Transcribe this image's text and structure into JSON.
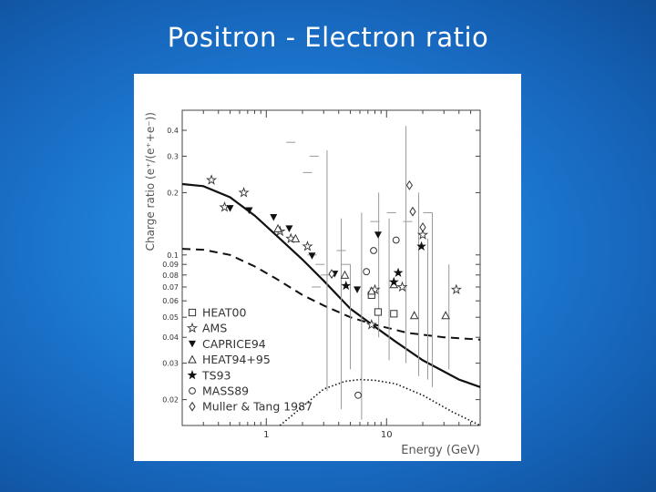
{
  "slide": {
    "title": "Positron - Electron ratio"
  },
  "chart_data": {
    "type": "scatter",
    "title": "",
    "xlabel": "Energy (GeV)",
    "ylabel": "Charge ratio (e⁺/(e⁺+e⁻))",
    "xscale": "log",
    "yscale": "log",
    "xlim": [
      0.2,
      60
    ],
    "ylim": [
      0.015,
      0.5
    ],
    "x_ticks": [
      "1",
      "10"
    ],
    "y_ticks": [
      "0.4",
      "0.3",
      "0.2",
      "0.1",
      "0.09",
      "0.08",
      "0.07",
      "0.06",
      "0.05",
      "0.04",
      "0.03",
      "0.02"
    ],
    "legend_position": "bottom-left",
    "grid": false,
    "series": [
      {
        "name": "HEAT00",
        "marker": "square",
        "points": [
          [
            7.5,
            0.064
          ],
          [
            8.5,
            0.053
          ],
          [
            11.5,
            0.052
          ]
        ]
      },
      {
        "name": "AMS",
        "marker": "star",
        "points": [
          [
            0.35,
            0.23
          ],
          [
            0.45,
            0.17
          ],
          [
            0.65,
            0.2
          ],
          [
            1.3,
            0.13
          ],
          [
            1.6,
            0.12
          ],
          [
            2.2,
            0.11
          ],
          [
            7.5,
            0.046
          ],
          [
            8.0,
            0.068
          ],
          [
            13.5,
            0.07
          ],
          [
            20.0,
            0.125
          ],
          [
            38.0,
            0.068
          ]
        ]
      },
      {
        "name": "CAPRICE94",
        "marker": "filled-triangle-down",
        "points": [
          [
            0.5,
            0.168
          ],
          [
            0.72,
            0.164
          ],
          [
            1.15,
            0.152
          ],
          [
            1.55,
            0.134
          ],
          [
            2.4,
            0.099
          ],
          [
            3.7,
            0.081
          ],
          [
            5.7,
            0.068
          ],
          [
            8.5,
            0.125
          ]
        ]
      },
      {
        "name": "HEAT94+95",
        "marker": "triangle-up",
        "points": [
          [
            1.25,
            0.134
          ],
          [
            1.75,
            0.12
          ],
          [
            4.5,
            0.08
          ],
          [
            7.5,
            0.067
          ],
          [
            11.5,
            0.072
          ],
          [
            17.0,
            0.051
          ],
          [
            31.0,
            0.051
          ]
        ]
      },
      {
        "name": "TS93",
        "marker": "filled-star",
        "points": [
          [
            4.6,
            0.071
          ],
          [
            11.5,
            0.074
          ],
          [
            12.5,
            0.082
          ],
          [
            19.5,
            0.11
          ]
        ]
      },
      {
        "name": "MASS89",
        "marker": "circle",
        "points": [
          [
            5.8,
            0.021
          ],
          [
            6.8,
            0.083
          ],
          [
            7.8,
            0.105
          ],
          [
            12.0,
            0.118
          ]
        ]
      },
      {
        "name": "Muller & Tang 1987",
        "marker": "diamond",
        "points": [
          [
            3.5,
            0.081
          ],
          [
            15.5,
            0.217
          ],
          [
            16.5,
            0.162
          ],
          [
            20.0,
            0.136
          ]
        ]
      }
    ],
    "curves": [
      {
        "style": "solid",
        "points": [
          [
            0.2,
            0.22
          ],
          [
            0.3,
            0.215
          ],
          [
            0.5,
            0.19
          ],
          [
            0.8,
            0.155
          ],
          [
            1.2,
            0.125
          ],
          [
            2.0,
            0.095
          ],
          [
            3.0,
            0.075
          ],
          [
            5.0,
            0.055
          ],
          [
            8.0,
            0.045
          ],
          [
            12.0,
            0.038
          ],
          [
            20.0,
            0.031
          ],
          [
            40.0,
            0.025
          ],
          [
            60.0,
            0.023
          ]
        ]
      },
      {
        "style": "dashed",
        "points": [
          [
            0.2,
            0.107
          ],
          [
            0.3,
            0.106
          ],
          [
            0.5,
            0.1
          ],
          [
            0.8,
            0.088
          ],
          [
            1.2,
            0.077
          ],
          [
            2.0,
            0.064
          ],
          [
            3.0,
            0.057
          ],
          [
            5.0,
            0.05
          ],
          [
            8.0,
            0.046
          ],
          [
            15.0,
            0.042
          ],
          [
            30.0,
            0.04
          ],
          [
            60.0,
            0.039
          ]
        ]
      },
      {
        "style": "dotted",
        "points": [
          [
            1.3,
            0.015
          ],
          [
            2.0,
            0.0185
          ],
          [
            3.0,
            0.0225
          ],
          [
            4.5,
            0.0245
          ],
          [
            6.0,
            0.025
          ],
          [
            8.0,
            0.0248
          ],
          [
            12.0,
            0.0238
          ],
          [
            20.0,
            0.021
          ],
          [
            35.0,
            0.0175
          ],
          [
            60.0,
            0.015
          ]
        ]
      }
    ],
    "extra_error_bars": [
      [
        3.2,
        0.022,
        0.32
      ],
      [
        4.2,
        0.018,
        0.15
      ],
      [
        5.0,
        0.028,
        0.09
      ],
      [
        6.2,
        0.016,
        0.16
      ],
      [
        8.6,
        0.04,
        0.2
      ],
      [
        10.5,
        0.031,
        0.15
      ],
      [
        14.5,
        0.03,
        0.42
      ],
      [
        18.5,
        0.026,
        0.2
      ],
      [
        24.0,
        0.023,
        0.16
      ],
      [
        22.0,
        0.025,
        0.12
      ],
      [
        33.0,
        0.028,
        0.09
      ]
    ],
    "extra_caps": [
      [
        1.6,
        0.35
      ],
      [
        2.5,
        0.3
      ],
      [
        2.2,
        0.25
      ],
      [
        4.2,
        0.105
      ],
      [
        8.0,
        0.145
      ],
      [
        11.0,
        0.16
      ],
      [
        15.0,
        0.145
      ],
      [
        22.0,
        0.16
      ],
      [
        4.6,
        0.09
      ],
      [
        2.8,
        0.09
      ],
      [
        3.1,
        0.08
      ],
      [
        2.4,
        0.1
      ],
      [
        2.6,
        0.07
      ]
    ]
  }
}
